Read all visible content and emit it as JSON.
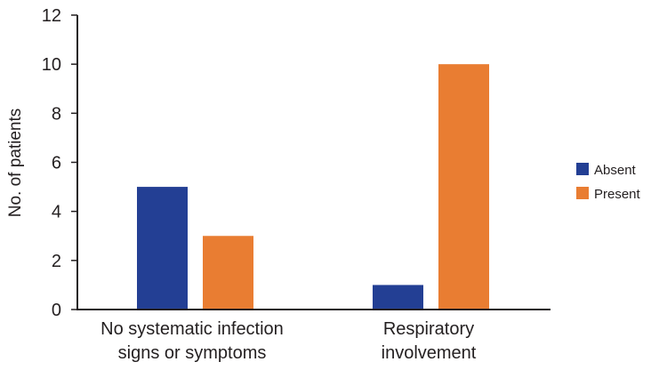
{
  "chart_data": {
    "type": "bar",
    "title": "",
    "xlabel": "",
    "ylabel": "No. of patients",
    "ylim": [
      0,
      12
    ],
    "yticks": [
      0,
      2,
      4,
      6,
      8,
      10,
      12
    ],
    "grid": false,
    "categories": [
      [
        "No systematic infection",
        "signs or symptoms"
      ],
      [
        "Respiratory",
        "involvement"
      ]
    ],
    "series": [
      {
        "name": "Absent",
        "color": "#233f94",
        "values": [
          5,
          1
        ]
      },
      {
        "name": "Present",
        "color": "#e97d32",
        "values": [
          3,
          10
        ]
      }
    ],
    "legend_position": "right"
  }
}
